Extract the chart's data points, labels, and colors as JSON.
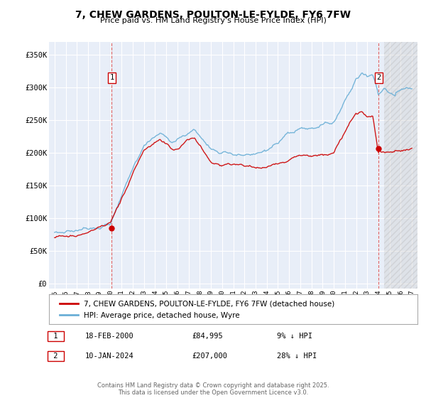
{
  "title": "7, CHEW GARDENS, POULTON-LE-FYLDE, FY6 7FW",
  "subtitle": "Price paid vs. HM Land Registry's House Price Index (HPI)",
  "background_color": "#ffffff",
  "plot_bg_color": "#e8eef8",
  "grid_color": "#ffffff",
  "sale1_date": 2000.12,
  "sale1_price": 84995,
  "sale1_label": "1",
  "sale2_date": 2024.03,
  "sale2_price": 207000,
  "sale2_label": "2",
  "hpi_color": "#6aafd6",
  "price_color": "#cc0000",
  "vline_color": "#cc0000",
  "legend_label_price": "7, CHEW GARDENS, POULTON-LE-FYLDE, FY6 7FW (detached house)",
  "legend_label_hpi": "HPI: Average price, detached house, Wyre",
  "footer": "Contains HM Land Registry data © Crown copyright and database right 2025.\nThis data is licensed under the Open Government Licence v3.0.",
  "yticks": [
    0,
    50000,
    100000,
    150000,
    200000,
    250000,
    300000,
    350000
  ],
  "ytick_labels": [
    "£0",
    "£50K",
    "£100K",
    "£150K",
    "£200K",
    "£250K",
    "£300K",
    "£350K"
  ],
  "xmin": 1994.5,
  "xmax": 2027.5,
  "ymin": -8000,
  "ymax": 370000,
  "future_shade_start": 2024.5,
  "title_fontsize": 10,
  "subtitle_fontsize": 8
}
